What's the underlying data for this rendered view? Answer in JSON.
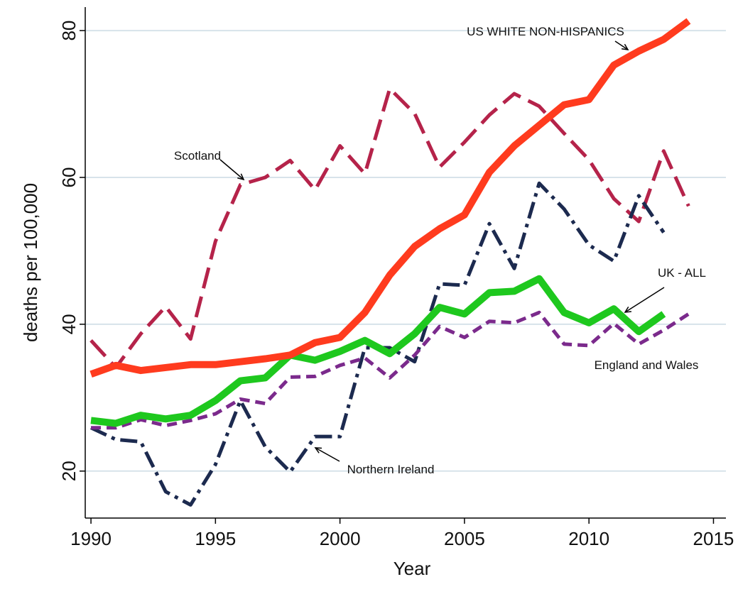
{
  "chart_data": {
    "type": "line",
    "x_label": "Year",
    "y_label": "deaths per 100,000",
    "x": [
      1990,
      1991,
      1992,
      1993,
      1994,
      1995,
      1996,
      1997,
      1998,
      1999,
      2000,
      2001,
      2002,
      2003,
      2004,
      2005,
      2006,
      2007,
      2008,
      2009,
      2010,
      2011,
      2012,
      2013,
      2014
    ],
    "series": [
      {
        "name": "Scotland",
        "color": "#b5234a",
        "line_style": "dash",
        "values": [
          37.8,
          34.1,
          38.7,
          42.4,
          38,
          51.3,
          59,
          60,
          62.3,
          58.3,
          64.3,
          60.5,
          72.1,
          68.7,
          61.4,
          64.8,
          68.5,
          71.4,
          69.7,
          66,
          62.4,
          57.1,
          54,
          63.6,
          56.1
        ]
      },
      {
        "name": "Northern Ireland",
        "color": "#1c2a4f",
        "line_style": "dashdot",
        "values": [
          25.9,
          24.3,
          24,
          17.2,
          15.4,
          20.9,
          29.6,
          23.3,
          19.9,
          24.7,
          24.7,
          36.8,
          36.8,
          34.9,
          45.5,
          45.3,
          53.7,
          47.6,
          59.2,
          55.7,
          50.8,
          48.6,
          57.5,
          52.5,
          null
        ]
      },
      {
        "name": "England and Wales",
        "color": "#7b2a8c",
        "line_style": "shortdash",
        "values": [
          25.9,
          25.9,
          27,
          26.2,
          26.9,
          27.8,
          29.8,
          29.2,
          32.8,
          32.9,
          34.4,
          35.4,
          32.7,
          35.8,
          39.7,
          38.2,
          40.4,
          40.2,
          41.6,
          37.3,
          37.1,
          40.1,
          37.3,
          39.2,
          41.4
        ]
      },
      {
        "name": "UK - ALL",
        "color": "#1ec81e",
        "line_style": "solid",
        "values": [
          26.9,
          26.5,
          27.6,
          27.1,
          27.6,
          29.6,
          32.3,
          32.7,
          35.8,
          35.1,
          36.3,
          37.8,
          36,
          38.7,
          42.3,
          41.4,
          44.3,
          44.5,
          46.2,
          41.6,
          40.2,
          42.1,
          39,
          41.4,
          null
        ]
      },
      {
        "name": "US WHITE NON-HISPANICS",
        "color": "#ff3b1e",
        "line_style": "solid",
        "values": [
          33.2,
          34.4,
          33.7,
          34.1,
          34.5,
          34.5,
          34.9,
          35.3,
          35.8,
          37.5,
          38.2,
          41.6,
          46.7,
          50.6,
          53,
          54.9,
          60.7,
          64.3,
          67.1,
          69.9,
          70.6,
          75.3,
          77.2,
          78.8,
          81.3
        ]
      }
    ],
    "xlim": [
      1989.77,
      2015.5
    ],
    "ylim": [
      13.6,
      83.2
    ],
    "xticks": [
      1990,
      1995,
      2000,
      2005,
      2010,
      2015
    ],
    "yticks": [
      20,
      40,
      60,
      80
    ],
    "grid": true
  }
}
